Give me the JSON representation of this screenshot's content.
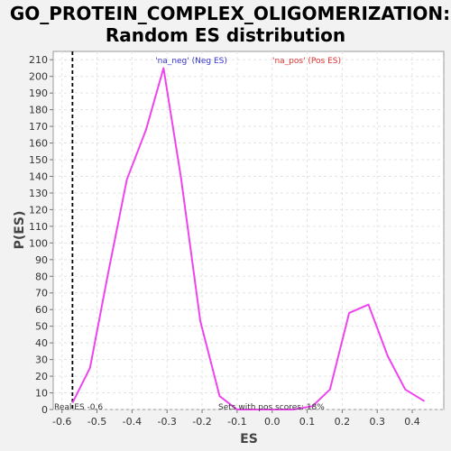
{
  "chart_data": {
    "type": "line",
    "title_line1": "GO_PROTEIN_COMPLEX_OLIGOMERIZATION:",
    "title_line2": "Random ES distribution",
    "xlabel": "ES",
    "ylabel": "P(ES)",
    "xlim": [
      -0.625,
      0.49
    ],
    "ylim": [
      0,
      215
    ],
    "xticks": [
      -0.6,
      -0.5,
      -0.4,
      -0.3,
      -0.2,
      -0.1,
      0.0,
      0.1,
      0.2,
      0.3,
      0.4
    ],
    "xtick_labels": [
      "-0.6",
      "-0.5",
      "-0.4",
      "-0.3",
      "-0.2",
      "-0.1",
      "0.0",
      "0.1",
      "0.2",
      "0.3",
      "0.4"
    ],
    "yticks": [
      0,
      10,
      20,
      30,
      40,
      50,
      60,
      70,
      80,
      90,
      100,
      110,
      120,
      130,
      140,
      150,
      160,
      170,
      180,
      190,
      200,
      210
    ],
    "grid": true,
    "series": [
      {
        "color": "#ee44ee",
        "x": [
          -0.57,
          -0.52,
          -0.47,
          -0.415,
          -0.36,
          -0.31,
          -0.26,
          -0.205,
          -0.15,
          -0.1,
          -0.045,
          0.01,
          0.06,
          0.115,
          0.165,
          0.22,
          0.275,
          0.33,
          0.38,
          0.435
        ],
        "y": [
          4,
          25,
          80,
          138,
          168,
          205,
          139,
          53,
          8,
          0,
          0,
          0,
          0,
          2,
          12,
          58,
          63,
          32,
          12,
          5
        ]
      }
    ],
    "real_es": -0.57,
    "real_es_label": "Real ES -0.6",
    "legend_neg": "'na_neg' (Neg ES)",
    "legend_pos": "'na_pos' (Pos ES)",
    "pos_scores_label": "Sets with pos scores: 18%"
  }
}
